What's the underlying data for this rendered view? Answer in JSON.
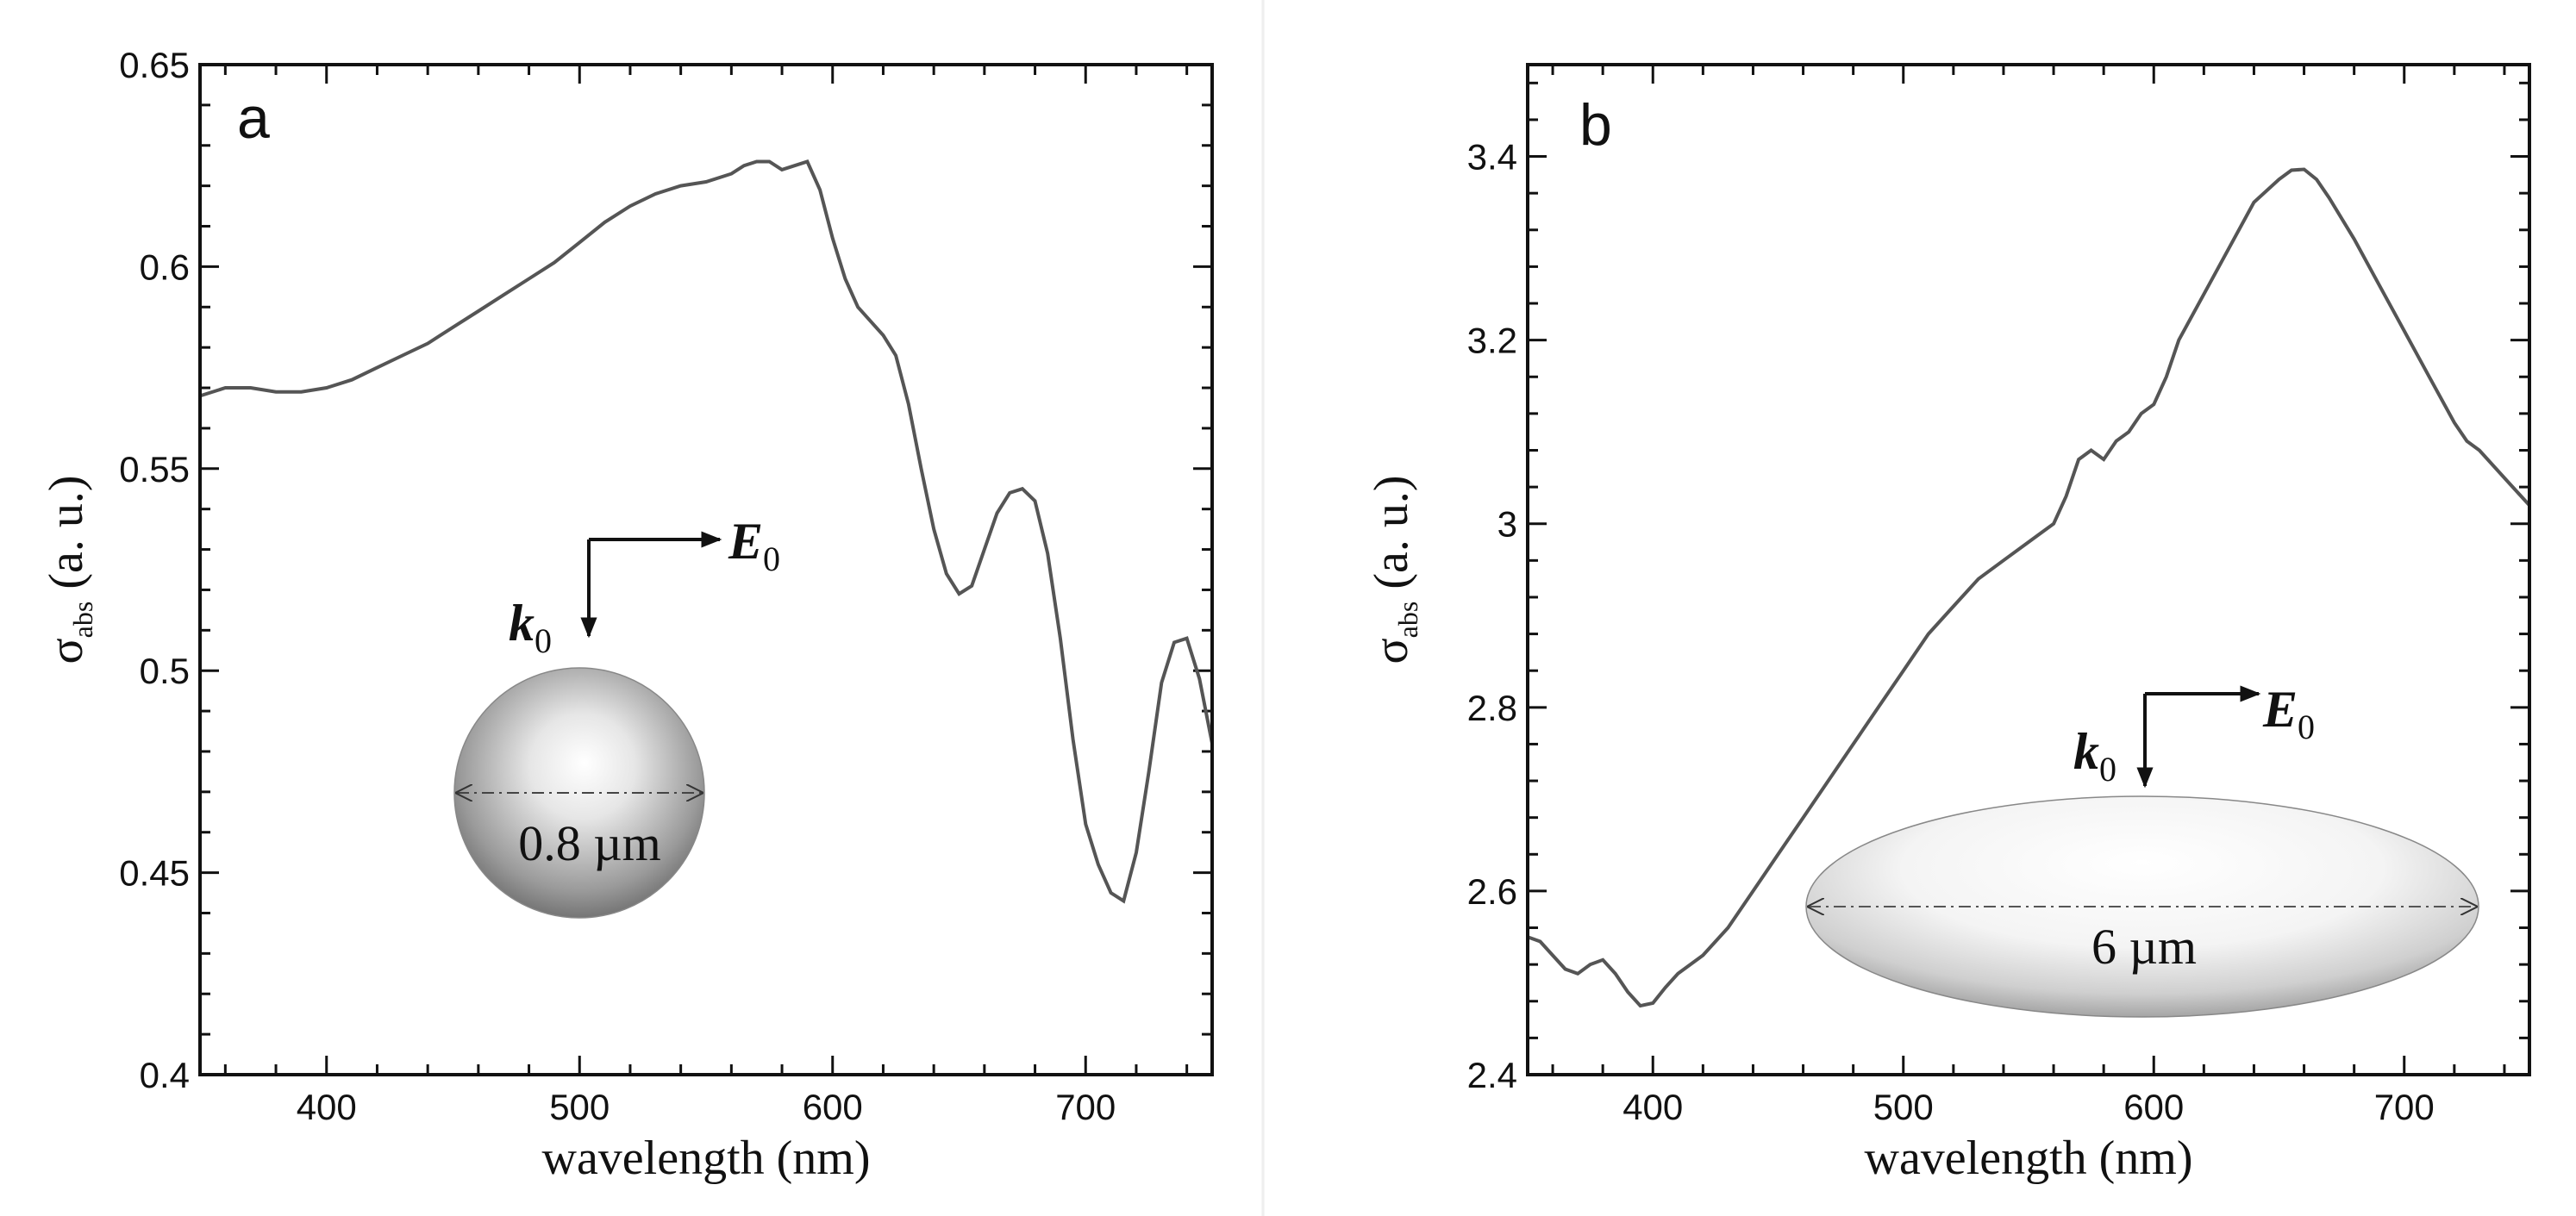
{
  "chart_data": [
    {
      "type": "line",
      "panel_label": "a",
      "xlabel": "wavelength (nm)",
      "ylabel_main": "σ",
      "ylabel_sub": "abs",
      "ylabel_unit": "(a. u.)",
      "xlim": [
        350,
        750
      ],
      "ylim": [
        0.4,
        0.65
      ],
      "xticks": [
        400,
        500,
        600,
        700
      ],
      "xtick_labels": [
        "400",
        "500",
        "600",
        "700"
      ],
      "yticks": [
        0.4,
        0.45,
        0.5,
        0.55,
        0.6,
        0.65
      ],
      "ytick_labels": [
        "0.4",
        "0.45",
        "0.5",
        "0.55",
        "0.6",
        "0.65"
      ],
      "inset": {
        "shape": "sphere",
        "size_label": "0.8 µm",
        "k_label": "k",
        "k_sub": "0",
        "e_label": "E",
        "e_sub": "0"
      },
      "series": [
        {
          "name": "σabs",
          "x": [
            350,
            360,
            370,
            380,
            390,
            400,
            410,
            420,
            430,
            440,
            450,
            460,
            470,
            480,
            490,
            500,
            510,
            520,
            530,
            540,
            550,
            560,
            565,
            570,
            575,
            580,
            585,
            590,
            595,
            600,
            605,
            610,
            620,
            625,
            630,
            635,
            640,
            645,
            650,
            655,
            660,
            665,
            670,
            675,
            680,
            685,
            690,
            695,
            700,
            705,
            710,
            715,
            720,
            725,
            730,
            735,
            740,
            745,
            750
          ],
          "y": [
            0.568,
            0.57,
            0.57,
            0.569,
            0.569,
            0.57,
            0.572,
            0.575,
            0.578,
            0.581,
            0.585,
            0.589,
            0.593,
            0.597,
            0.601,
            0.606,
            0.611,
            0.615,
            0.618,
            0.62,
            0.621,
            0.623,
            0.625,
            0.626,
            0.626,
            0.624,
            0.625,
            0.626,
            0.619,
            0.607,
            0.597,
            0.59,
            0.583,
            0.578,
            0.566,
            0.55,
            0.535,
            0.524,
            0.519,
            0.521,
            0.53,
            0.539,
            0.544,
            0.545,
            0.542,
            0.529,
            0.508,
            0.483,
            0.462,
            0.452,
            0.445,
            0.443,
            0.455,
            0.475,
            0.497,
            0.507,
            0.508,
            0.498,
            0.482
          ]
        }
      ]
    },
    {
      "type": "line",
      "panel_label": "b",
      "xlabel": "wavelength (nm)",
      "ylabel_main": "σ",
      "ylabel_sub": "abs",
      "ylabel_unit": "(a. u.)",
      "xlim": [
        350,
        750
      ],
      "ylim": [
        2.4,
        3.5
      ],
      "xticks": [
        400,
        500,
        600,
        700
      ],
      "xtick_labels": [
        "400",
        "500",
        "600",
        "700"
      ],
      "yticks": [
        2.4,
        2.6,
        2.8,
        3.0,
        3.2,
        3.4
      ],
      "ytick_labels": [
        "2.4",
        "2.6",
        "2.8",
        "3",
        "3.2",
        "3.4"
      ],
      "inset": {
        "shape": "ellipsoid",
        "size_label": "6 µm",
        "k_label": "k",
        "k_sub": "0",
        "e_label": "E",
        "e_sub": "0"
      },
      "series": [
        {
          "name": "σabs",
          "x": [
            350,
            355,
            360,
            365,
            370,
            375,
            380,
            385,
            390,
            395,
            400,
            405,
            410,
            420,
            430,
            440,
            450,
            460,
            470,
            480,
            490,
            500,
            510,
            520,
            530,
            540,
            550,
            555,
            560,
            565,
            570,
            575,
            580,
            585,
            590,
            595,
            600,
            605,
            610,
            620,
            630,
            640,
            650,
            655,
            660,
            665,
            670,
            680,
            690,
            700,
            710,
            720,
            725,
            730,
            740,
            750
          ],
          "y": [
            2.55,
            2.545,
            2.53,
            2.515,
            2.51,
            2.52,
            2.525,
            2.51,
            2.49,
            2.475,
            2.478,
            2.495,
            2.51,
            2.53,
            2.56,
            2.6,
            2.64,
            2.68,
            2.72,
            2.76,
            2.8,
            2.84,
            2.88,
            2.91,
            2.94,
            2.96,
            2.98,
            2.99,
            3.0,
            3.03,
            3.07,
            3.08,
            3.07,
            3.09,
            3.1,
            3.12,
            3.13,
            3.16,
            3.2,
            3.25,
            3.3,
            3.35,
            3.375,
            3.385,
            3.386,
            3.375,
            3.355,
            3.31,
            3.26,
            3.21,
            3.16,
            3.11,
            3.09,
            3.08,
            3.05,
            3.02
          ]
        }
      ]
    }
  ]
}
